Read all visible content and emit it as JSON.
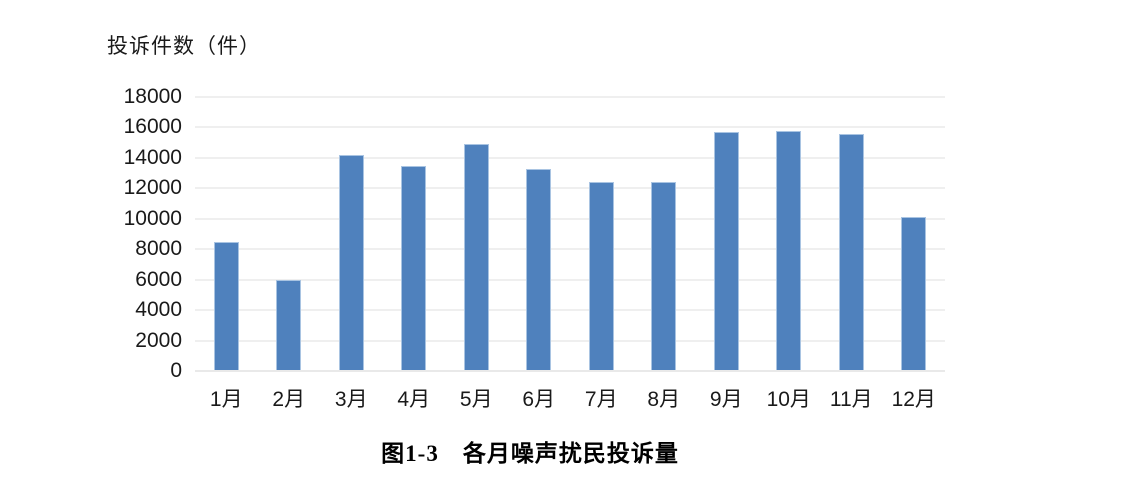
{
  "figure": {
    "caption": "图1-3　各月噪声扰民投诉量",
    "y_axis_title": "投诉件数（件）"
  },
  "chart_data": {
    "type": "bar",
    "title": "图1-3　各月噪声扰民投诉量",
    "ylabel": "投诉件数（件）",
    "xlabel": "",
    "categories": [
      "1月",
      "2月",
      "3月",
      "4月",
      "5月",
      "6月",
      "7月",
      "8月",
      "9月",
      "10月",
      "11月",
      "12月"
    ],
    "values": [
      8500,
      6000,
      14200,
      13500,
      14900,
      13300,
      12400,
      12400,
      15700,
      15750,
      15550,
      10100
    ],
    "ylim": [
      0,
      18000
    ],
    "ytick_step": 2000,
    "ytick_labels": [
      "0",
      "2000",
      "4000",
      "6000",
      "8000",
      "10000",
      "12000",
      "14000",
      "16000",
      "18000"
    ],
    "grid": "horizontal",
    "legend": "none",
    "bar_color": "#4F81BD",
    "bar_edge_color": "#A9C4E2",
    "gridline_color": "#EFEFEF",
    "text_color": "#1a1a1a",
    "background": "#FFFFFF"
  }
}
